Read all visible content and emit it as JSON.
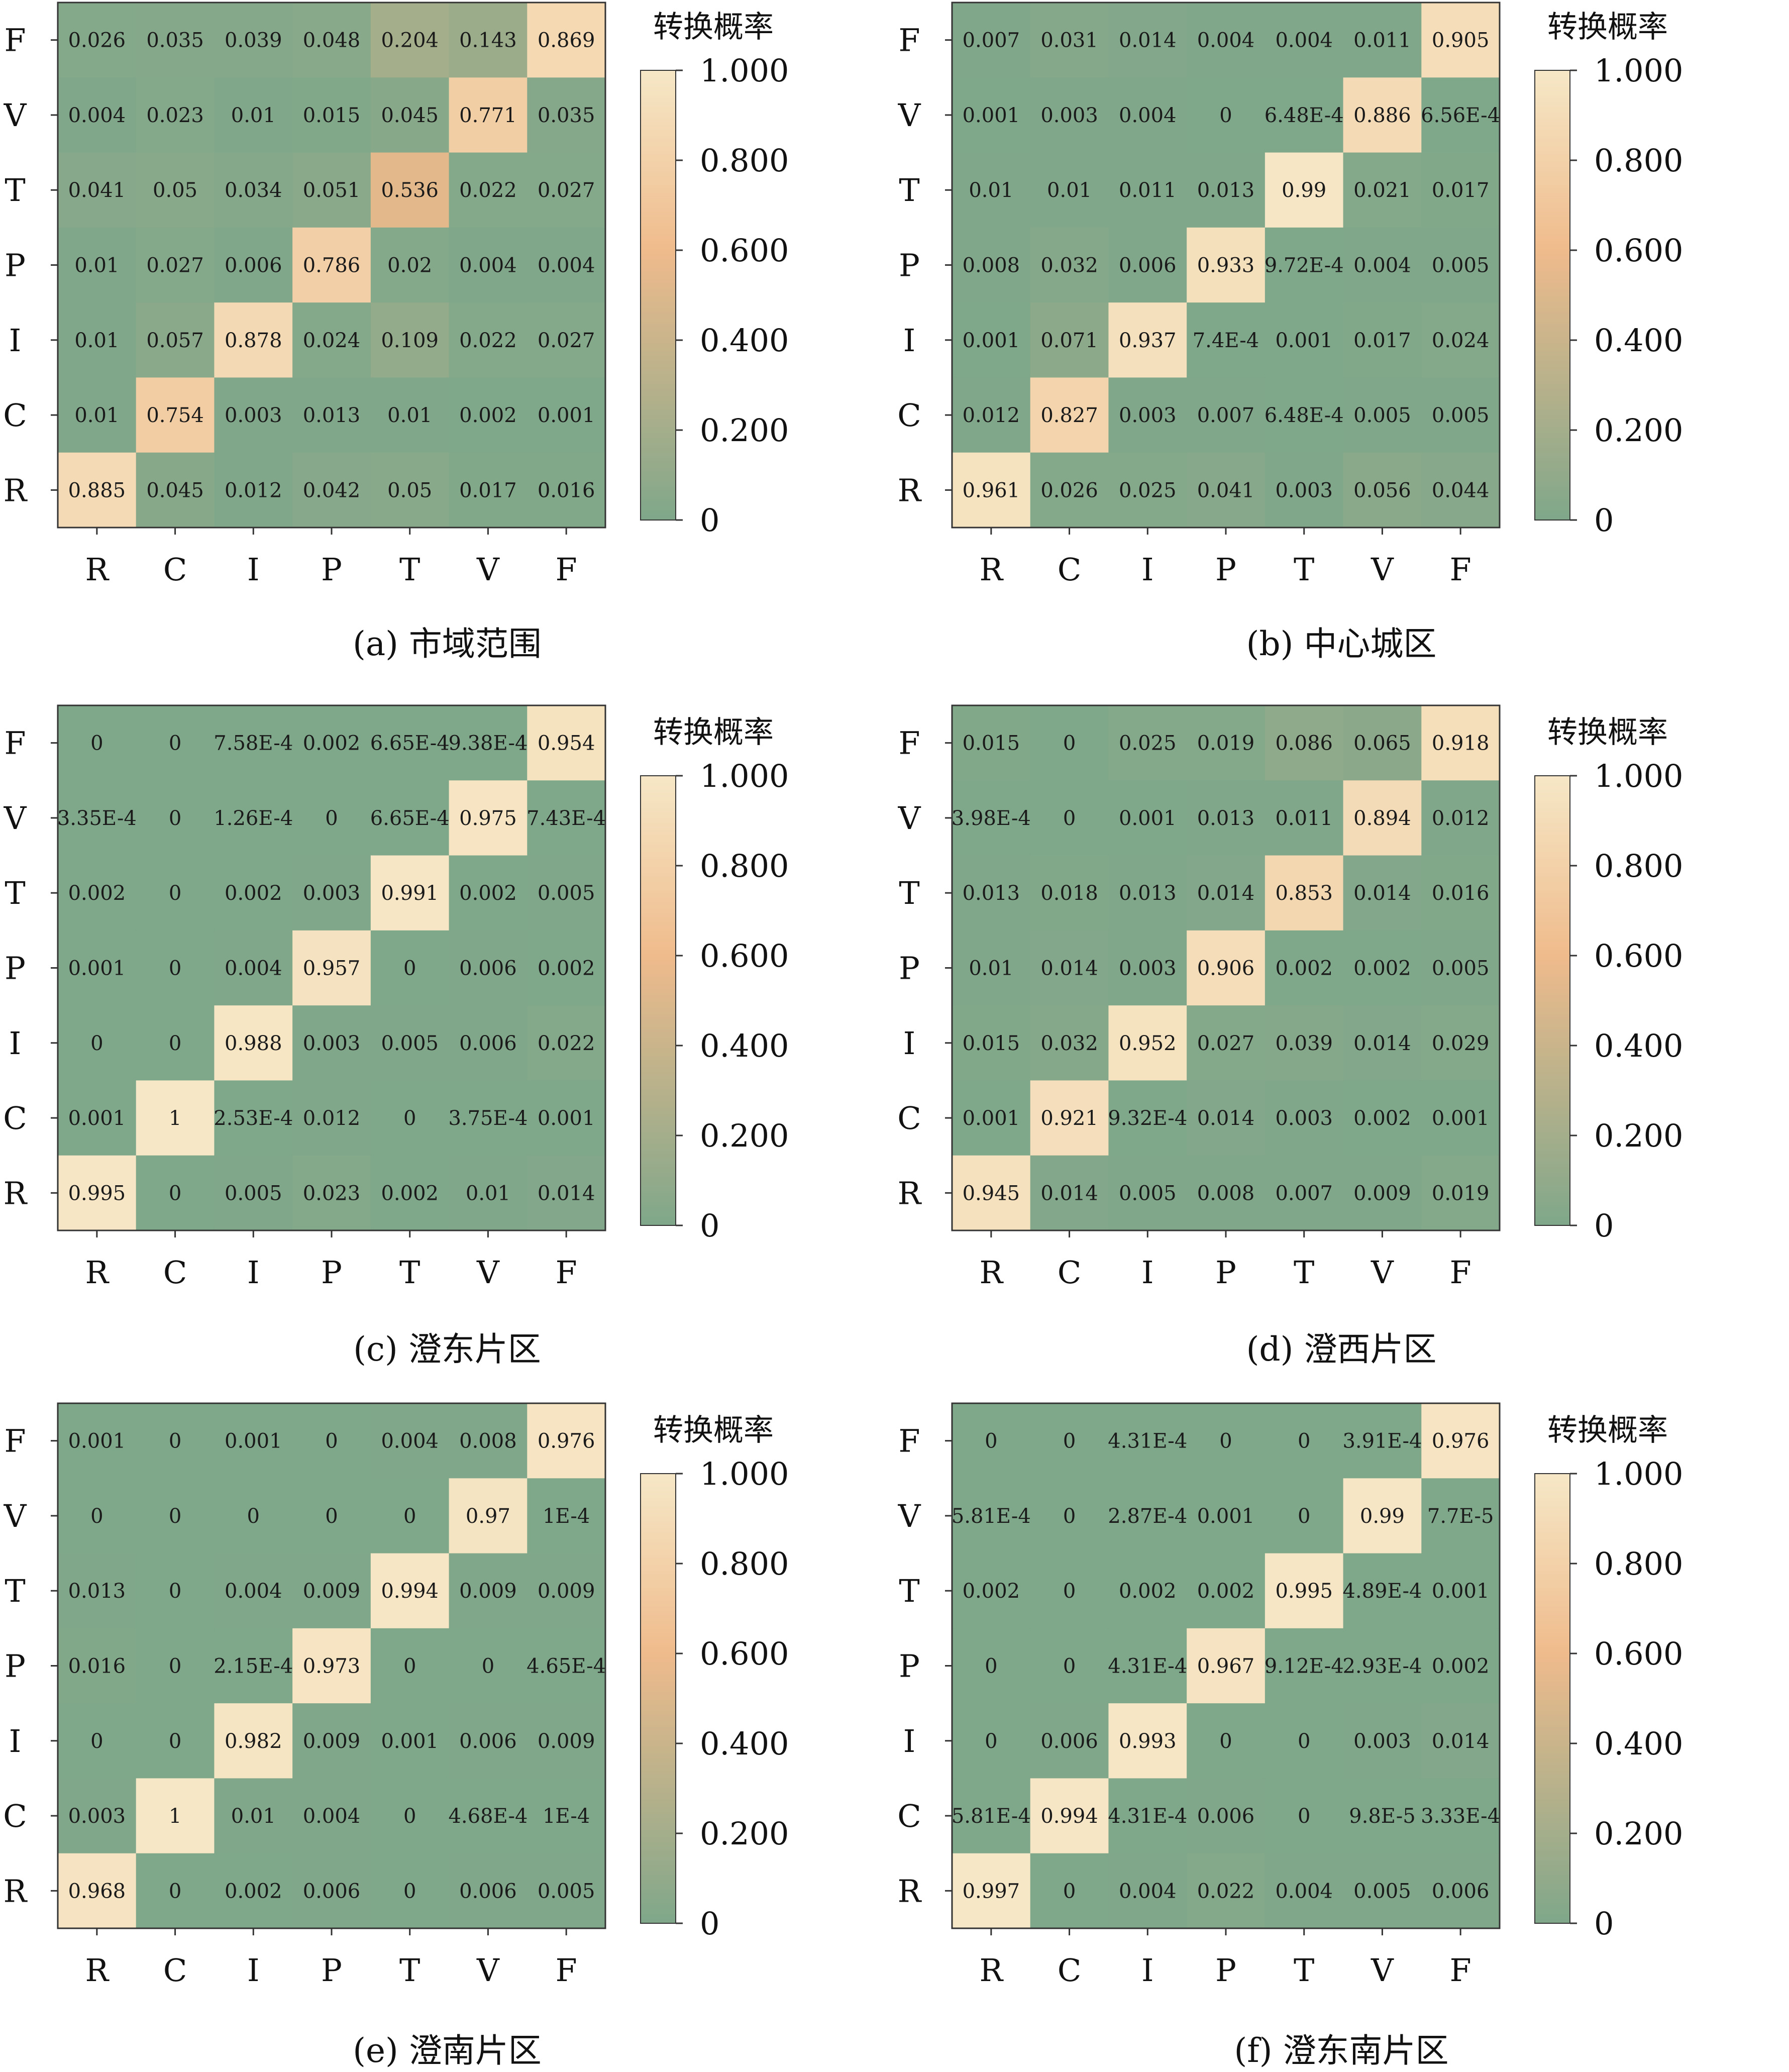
{
  "colorbar": {
    "title": "转换概率",
    "ticks": [
      "1.000",
      "0.800",
      "0.600",
      "0.400",
      "0.200",
      "0"
    ],
    "colors": {
      "low": "#7fa78a",
      "mid": "#efbb8c",
      "high": "#f6e7c6"
    }
  },
  "chart_data": [
    {
      "type": "heatmap",
      "title": "(a) 市域范围",
      "x_categories": [
        "R",
        "C",
        "I",
        "P",
        "T",
        "V",
        "F"
      ],
      "y_categories": [
        "F",
        "V",
        "T",
        "P",
        "I",
        "C",
        "R"
      ],
      "value_range": [
        0,
        1
      ],
      "legend_title": "转换概率",
      "labels": [
        [
          "0.026",
          "0.035",
          "0.039",
          "0.048",
          "0.204",
          "0.143",
          "0.869"
        ],
        [
          "0.004",
          "0.023",
          "0.01",
          "0.015",
          "0.045",
          "0.771",
          "0.035"
        ],
        [
          "0.041",
          "0.05",
          "0.034",
          "0.051",
          "0.536",
          "0.022",
          "0.027"
        ],
        [
          "0.01",
          "0.027",
          "0.006",
          "0.786",
          "0.02",
          "0.004",
          "0.004"
        ],
        [
          "0.01",
          "0.057",
          "0.878",
          "0.024",
          "0.109",
          "0.022",
          "0.027"
        ],
        [
          "0.01",
          "0.754",
          "0.003",
          "0.013",
          "0.01",
          "0.002",
          "0.001"
        ],
        [
          "0.885",
          "0.045",
          "0.012",
          "0.042",
          "0.05",
          "0.017",
          "0.016"
        ]
      ]
    },
    {
      "type": "heatmap",
      "title": "(b) 中心城区",
      "x_categories": [
        "R",
        "C",
        "I",
        "P",
        "T",
        "V",
        "F"
      ],
      "y_categories": [
        "F",
        "V",
        "T",
        "P",
        "I",
        "C",
        "R"
      ],
      "value_range": [
        0,
        1
      ],
      "legend_title": "转换概率",
      "labels": [
        [
          "0.007",
          "0.031",
          "0.014",
          "0.004",
          "0.004",
          "0.011",
          "0.905"
        ],
        [
          "0.001",
          "0.003",
          "0.004",
          "0",
          "6.48E-4",
          "0.886",
          "6.56E-4"
        ],
        [
          "0.01",
          "0.01",
          "0.011",
          "0.013",
          "0.99",
          "0.021",
          "0.017"
        ],
        [
          "0.008",
          "0.032",
          "0.006",
          "0.933",
          "9.72E-4",
          "0.004",
          "0.005"
        ],
        [
          "0.001",
          "0.071",
          "0.937",
          "7.4E-4",
          "0.001",
          "0.017",
          "0.024"
        ],
        [
          "0.012",
          "0.827",
          "0.003",
          "0.007",
          "6.48E-4",
          "0.005",
          "0.005"
        ],
        [
          "0.961",
          "0.026",
          "0.025",
          "0.041",
          "0.003",
          "0.056",
          "0.044"
        ]
      ]
    },
    {
      "type": "heatmap",
      "title": "(c) 澄东片区",
      "x_categories": [
        "R",
        "C",
        "I",
        "P",
        "T",
        "V",
        "F"
      ],
      "y_categories": [
        "F",
        "V",
        "T",
        "P",
        "I",
        "C",
        "R"
      ],
      "value_range": [
        0,
        1
      ],
      "legend_title": "转换概率",
      "labels": [
        [
          "0",
          "0",
          "7.58E-4",
          "0.002",
          "6.65E-4",
          "9.38E-4",
          "0.954"
        ],
        [
          "3.35E-4",
          "0",
          "1.26E-4",
          "0",
          "6.65E-4",
          "0.975",
          "7.43E-4"
        ],
        [
          "0.002",
          "0",
          "0.002",
          "0.003",
          "0.991",
          "0.002",
          "0.005"
        ],
        [
          "0.001",
          "0",
          "0.004",
          "0.957",
          "0",
          "0.006",
          "0.002"
        ],
        [
          "0",
          "0",
          "0.988",
          "0.003",
          "0.005",
          "0.006",
          "0.022"
        ],
        [
          "0.001",
          "1",
          "2.53E-4",
          "0.012",
          "0",
          "3.75E-4",
          "0.001"
        ],
        [
          "0.995",
          "0",
          "0.005",
          "0.023",
          "0.002",
          "0.01",
          "0.014"
        ]
      ]
    },
    {
      "type": "heatmap",
      "title": "(d) 澄西片区",
      "x_categories": [
        "R",
        "C",
        "I",
        "P",
        "T",
        "V",
        "F"
      ],
      "y_categories": [
        "F",
        "V",
        "T",
        "P",
        "I",
        "C",
        "R"
      ],
      "value_range": [
        0,
        1
      ],
      "legend_title": "转换概率",
      "labels": [
        [
          "0.015",
          "0",
          "0.025",
          "0.019",
          "0.086",
          "0.065",
          "0.918"
        ],
        [
          "3.98E-4",
          "0",
          "0.001",
          "0.013",
          "0.011",
          "0.894",
          "0.012"
        ],
        [
          "0.013",
          "0.018",
          "0.013",
          "0.014",
          "0.853",
          "0.014",
          "0.016"
        ],
        [
          "0.01",
          "0.014",
          "0.003",
          "0.906",
          "0.002",
          "0.002",
          "0.005"
        ],
        [
          "0.015",
          "0.032",
          "0.952",
          "0.027",
          "0.039",
          "0.014",
          "0.029"
        ],
        [
          "0.001",
          "0.921",
          "9.32E-4",
          "0.014",
          "0.003",
          "0.002",
          "0.001"
        ],
        [
          "0.945",
          "0.014",
          "0.005",
          "0.008",
          "0.007",
          "0.009",
          "0.019"
        ]
      ]
    },
    {
      "type": "heatmap",
      "title": "(e) 澄南片区",
      "x_categories": [
        "R",
        "C",
        "I",
        "P",
        "T",
        "V",
        "F"
      ],
      "y_categories": [
        "F",
        "V",
        "T",
        "P",
        "I",
        "C",
        "R"
      ],
      "value_range": [
        0,
        1
      ],
      "legend_title": "转换概率",
      "labels": [
        [
          "0.001",
          "0",
          "0.001",
          "0",
          "0.004",
          "0.008",
          "0.976"
        ],
        [
          "0",
          "0",
          "0",
          "0",
          "0",
          "0.97",
          "1E-4"
        ],
        [
          "0.013",
          "0",
          "0.004",
          "0.009",
          "0.994",
          "0.009",
          "0.009"
        ],
        [
          "0.016",
          "0",
          "2.15E-4",
          "0.973",
          "0",
          "0",
          "4.65E-4"
        ],
        [
          "0",
          "0",
          "0.982",
          "0.009",
          "0.001",
          "0.006",
          "0.009"
        ],
        [
          "0.003",
          "1",
          "0.01",
          "0.004",
          "0",
          "4.68E-4",
          "1E-4"
        ],
        [
          "0.968",
          "0",
          "0.002",
          "0.006",
          "0",
          "0.006",
          "0.005"
        ]
      ]
    },
    {
      "type": "heatmap",
      "title": "(f) 澄东南片区",
      "x_categories": [
        "R",
        "C",
        "I",
        "P",
        "T",
        "V",
        "F"
      ],
      "y_categories": [
        "F",
        "V",
        "T",
        "P",
        "I",
        "C",
        "R"
      ],
      "value_range": [
        0,
        1
      ],
      "legend_title": "转换概率",
      "labels": [
        [
          "0",
          "0",
          "4.31E-4",
          "0",
          "0",
          "3.91E-4",
          "0.976"
        ],
        [
          "5.81E-4",
          "0",
          "2.87E-4",
          "0.001",
          "0",
          "0.99",
          "7.7E-5"
        ],
        [
          "0.002",
          "0",
          "0.002",
          "0.002",
          "0.995",
          "4.89E-4",
          "0.001"
        ],
        [
          "0",
          "0",
          "4.31E-4",
          "0.967",
          "9.12E-4",
          "2.93E-4",
          "0.002"
        ],
        [
          "0",
          "0.006",
          "0.993",
          "0",
          "0",
          "0.003",
          "0.014"
        ],
        [
          "5.81E-4",
          "0.994",
          "4.31E-4",
          "0.006",
          "0",
          "9.8E-5",
          "3.33E-4"
        ],
        [
          "0.997",
          "0",
          "0.004",
          "0.022",
          "0.004",
          "0.005",
          "0.006"
        ]
      ]
    }
  ]
}
